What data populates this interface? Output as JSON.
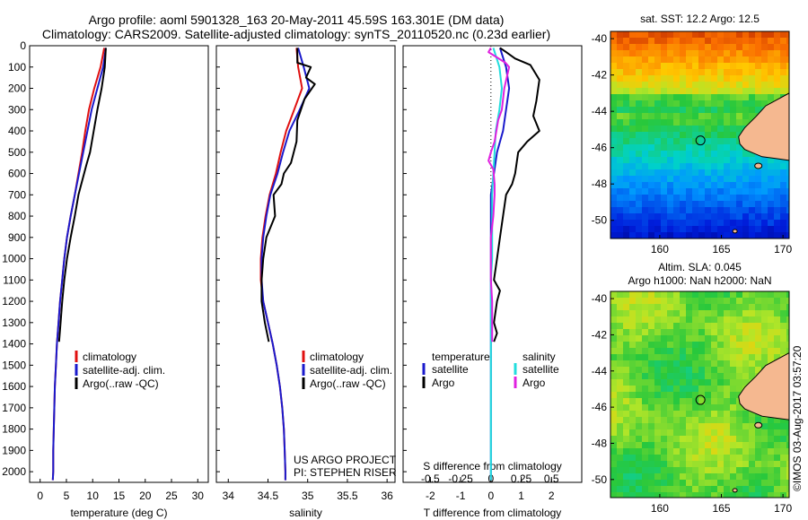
{
  "header": {
    "line1": "Argo profile: aoml 5901328_163 20-May-2011 45.59S 163.301E (DM data)",
    "line2": "Climatology: CARS2009. Satellite-adjusted climatology: synTS_20110520.nc (0.23d earlier)"
  },
  "colors": {
    "climatology": "#e01010",
    "satellite": "#1a1acc",
    "argo": "#000000",
    "sat_salinity": "#22dddd",
    "argo_salinity": "#e020e0",
    "land": "#f5b890"
  },
  "legend": {
    "climatology": "climatology",
    "satellite_adj": "satellite-adj. clim.",
    "argo_qc": "Argo(..raw -QC)",
    "temperature": "temperature",
    "salinity": "salinity",
    "satellite": "satellite",
    "argo": "Argo"
  },
  "credits": {
    "project": "US ARGO PROJECT",
    "pi": "PI: STEPHEN RISER",
    "imos": "©IMOS 03-Aug-2017 03:57:20"
  },
  "chart_data": [
    {
      "type": "line",
      "id": "temperature",
      "xlabel": "temperature (deg C)",
      "ylabel": "",
      "xlim": [
        -2,
        32
      ],
      "ylim": [
        2050,
        0
      ],
      "xticks": [
        0,
        5,
        10,
        15,
        20,
        25,
        30
      ],
      "yticks": [
        0,
        100,
        200,
        300,
        400,
        500,
        600,
        700,
        800,
        900,
        1000,
        1100,
        1200,
        1300,
        1400,
        1500,
        1600,
        1700,
        1800,
        1900,
        2000
      ],
      "series": [
        {
          "name": "climatology",
          "color": "#e01010",
          "x": [
            12.2,
            11.5,
            10.3,
            9.3,
            8.6,
            8.0,
            7.3,
            6.6,
            5.8,
            5.1,
            4.6,
            4.2,
            3.8,
            3.5,
            3.2,
            3.0,
            2.8,
            2.7,
            2.6,
            2.5,
            2.5,
            2.4
          ],
          "y": [
            10,
            100,
            200,
            300,
            400,
            500,
            600,
            700,
            800,
            900,
            1000,
            1100,
            1200,
            1300,
            1400,
            1500,
            1600,
            1700,
            1800,
            1900,
            2000,
            2040
          ]
        },
        {
          "name": "satellite-adj. clim.",
          "color": "#1a1acc",
          "x": [
            12.5,
            12.0,
            10.9,
            9.8,
            9.0,
            8.2,
            7.4,
            6.6,
            5.8,
            5.1,
            4.6,
            4.2,
            3.8,
            3.5,
            3.2,
            3.0,
            2.8,
            2.7,
            2.6,
            2.5,
            2.5,
            2.4
          ],
          "y": [
            10,
            100,
            200,
            300,
            400,
            500,
            600,
            700,
            800,
            900,
            1000,
            1100,
            1200,
            1300,
            1400,
            1500,
            1600,
            1700,
            1800,
            1900,
            2000,
            2040
          ]
        },
        {
          "name": "Argo(..raw -QC)",
          "color": "#000000",
          "x": [
            12.5,
            12.3,
            11.7,
            10.9,
            10.2,
            9.5,
            8.8,
            7.3,
            6.6,
            5.8,
            5.1,
            4.6,
            4.2,
            3.9,
            3.6
          ],
          "y": [
            10,
            100,
            200,
            300,
            400,
            500,
            560,
            700,
            800,
            900,
            1000,
            1100,
            1200,
            1300,
            1390
          ]
        }
      ]
    },
    {
      "type": "line",
      "id": "salinity",
      "xlabel": "salinity",
      "ylabel": "",
      "xlim": [
        33.85,
        36.1
      ],
      "ylim": [
        2050,
        0
      ],
      "xticks": [
        34,
        34.5,
        35,
        35.5,
        36
      ],
      "series": [
        {
          "name": "climatology",
          "color": "#e01010",
          "x": [
            34.86,
            34.88,
            34.93,
            34.83,
            34.73,
            34.66,
            34.6,
            34.52,
            34.47,
            34.43,
            34.41,
            34.41,
            34.44,
            34.5,
            34.56,
            34.61,
            34.65,
            34.68,
            34.7,
            34.71,
            34.72,
            34.72
          ],
          "y": [
            10,
            100,
            200,
            300,
            400,
            500,
            600,
            700,
            800,
            900,
            1000,
            1100,
            1200,
            1300,
            1400,
            1500,
            1600,
            1700,
            1800,
            1900,
            2000,
            2040
          ]
        },
        {
          "name": "satellite-adj. clim.",
          "color": "#1a1acc",
          "x": [
            34.88,
            34.95,
            35.02,
            34.9,
            34.77,
            34.69,
            34.62,
            34.53,
            34.48,
            34.44,
            34.42,
            34.42,
            34.44,
            34.5,
            34.56,
            34.61,
            34.65,
            34.68,
            34.7,
            34.71,
            34.72,
            34.72
          ],
          "y": [
            10,
            100,
            200,
            300,
            400,
            500,
            600,
            700,
            800,
            900,
            1000,
            1100,
            1200,
            1300,
            1400,
            1500,
            1600,
            1700,
            1800,
            1900,
            2000,
            2040
          ]
        },
        {
          "name": "Argo(..raw -QC)",
          "color": "#000000",
          "x": [
            34.87,
            34.87,
            35.04,
            34.98,
            35.09,
            34.96,
            34.87,
            34.86,
            34.79,
            34.7,
            34.67,
            34.57,
            34.59,
            34.48,
            34.44,
            34.42,
            34.42,
            34.46,
            34.51
          ],
          "y": [
            10,
            80,
            100,
            150,
            180,
            250,
            350,
            450,
            550,
            600,
            650,
            700,
            800,
            900,
            1000,
            1100,
            1200,
            1300,
            1390
          ]
        }
      ]
    },
    {
      "type": "line",
      "id": "differences",
      "xlabel": "T difference from climatology",
      "xlabel_top": "S difference from climatology",
      "xlim": [
        -2.9,
        3.0
      ],
      "xlim_top": [
        -0.725,
        0.75
      ],
      "ylim": [
        2050,
        0
      ],
      "xticks": [
        -2,
        -1,
        0,
        1,
        2
      ],
      "xticks_top": [
        -0.5,
        -0.25,
        0,
        0.25,
        0.5
      ],
      "series": [
        {
          "name": "temperature satellite",
          "color": "#1a1acc",
          "x": [
            0.3,
            0.5,
            0.6,
            0.5,
            0.4,
            0.2,
            0.1,
            0.0,
            0.0,
            0.0,
            0.0,
            0.0,
            0.0,
            0.0,
            0.0,
            0.0,
            0.0,
            0.0,
            0.0,
            0.0,
            0.0,
            0.0
          ],
          "y": [
            10,
            100,
            200,
            300,
            400,
            500,
            600,
            700,
            800,
            900,
            1000,
            1100,
            1200,
            1300,
            1400,
            1500,
            1600,
            1700,
            1800,
            1900,
            2000,
            2040
          ]
        },
        {
          "name": "temperature Argo",
          "color": "#000000",
          "x": [
            0.3,
            0.5,
            0.8,
            1.3,
            1.6,
            1.5,
            1.4,
            1.6,
            1.2,
            0.9,
            0.8,
            0.7,
            0.5,
            0.4,
            0.3,
            0.2,
            0.1,
            0.3,
            0.2,
            0.1,
            0.2,
            0.1
          ],
          "y": [
            10,
            30,
            60,
            90,
            160,
            260,
            330,
            400,
            450,
            500,
            600,
            650,
            700,
            800,
            900,
            1000,
            1100,
            1150,
            1200,
            1300,
            1350,
            1390
          ]
        },
        {
          "name": "salinity satellite",
          "color": "#22dddd",
          "x": [
            0.02,
            0.07,
            0.09,
            0.07,
            0.04,
            0.03,
            0.02,
            0.01,
            0.01,
            0.01,
            0.01,
            0.0,
            0.0,
            0.0,
            0.0,
            0.0,
            0.0,
            0.0,
            0.0,
            0.0,
            0.0,
            0.0
          ],
          "y": [
            10,
            100,
            200,
            300,
            400,
            500,
            600,
            700,
            800,
            900,
            1000,
            1100,
            1200,
            1300,
            1400,
            1500,
            1600,
            1700,
            1800,
            1900,
            2000,
            2040
          ]
        },
        {
          "name": "salinity Argo",
          "color": "#e020e0",
          "x": [
            0.0,
            -0.02,
            0.12,
            0.15,
            0.11,
            0.09,
            0.06,
            0.03,
            0.0,
            -0.02,
            0.02,
            0.03,
            0.03,
            0.02,
            0.0,
            0.0,
            0.0,
            0.01,
            0.01
          ],
          "y": [
            10,
            30,
            80,
            100,
            200,
            300,
            350,
            450,
            500,
            540,
            580,
            650,
            700,
            800,
            900,
            1000,
            1100,
            1200,
            1390
          ]
        }
      ]
    },
    {
      "type": "heatmap",
      "id": "sst-map",
      "title": "sat. SST: 12.2  Argo: 12.5",
      "xlim": [
        156,
        170.5
      ],
      "ylim": [
        -51,
        -39.6
      ],
      "xticks": [
        160,
        165,
        170
      ],
      "yticks": [
        -40,
        -42,
        -44,
        -46,
        -48,
        -50
      ],
      "marker": {
        "lon": 163.3,
        "lat": -45.6
      }
    },
    {
      "type": "heatmap",
      "id": "sla-map",
      "title": "Altim. SLA: 0.045",
      "title2": "Argo h1000: NaN h2000: NaN",
      "xlim": [
        156,
        170.5
      ],
      "ylim": [
        -51,
        -39.6
      ],
      "xticks": [
        160,
        165,
        170
      ],
      "yticks": [
        -40,
        -42,
        -44,
        -46,
        -48,
        -50
      ],
      "marker": {
        "lon": 163.3,
        "lat": -45.6
      }
    }
  ]
}
